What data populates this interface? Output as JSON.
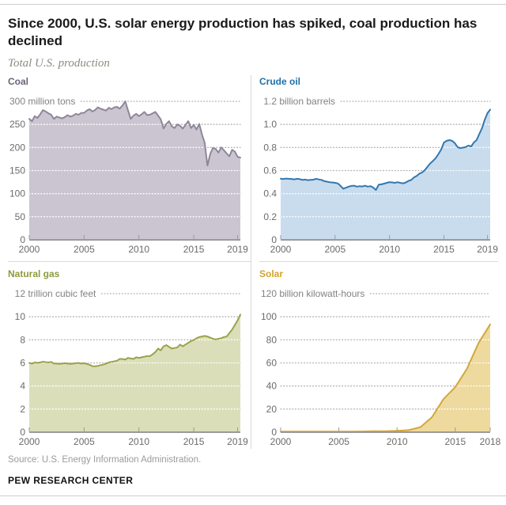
{
  "header": {
    "title": "Since 2000, U.S. solar energy production has spiked, coal production has declined",
    "subtitle": "Total U.S. production"
  },
  "footer": {
    "source": "Source: U.S. Energy Information Administration.",
    "brand": "PEW RESEARCH CENTER"
  },
  "chart_data": [
    {
      "id": "coal",
      "type": "area",
      "title": "Coal",
      "unit_label": "300 million tons",
      "unit_number": "300",
      "ymax": 300,
      "y_tick_labels": [
        "0",
        "50",
        "100",
        "150",
        "200",
        "250"
      ],
      "x_domain": [
        2000,
        2019.25
      ],
      "x_ticks": [
        "2000",
        "2005",
        "2010",
        "2015",
        "2019"
      ],
      "x_tick_years": [
        2000,
        2005,
        2010,
        2015,
        2019
      ],
      "x_start": 2000,
      "x_step": 0.25,
      "values": [
        262,
        257,
        268,
        264,
        272,
        281,
        278,
        274,
        271,
        262,
        267,
        265,
        263,
        266,
        270,
        267,
        269,
        273,
        271,
        275,
        275,
        280,
        283,
        278,
        281,
        287,
        284,
        282,
        280,
        286,
        283,
        287,
        288,
        284,
        291,
        300,
        281,
        262,
        269,
        273,
        268,
        272,
        277,
        270,
        271,
        274,
        277,
        269,
        261,
        241,
        251,
        257,
        246,
        242,
        250,
        247,
        241,
        249,
        257,
        242,
        249,
        239,
        251,
        228,
        210,
        161,
        186,
        199,
        197,
        189,
        200,
        194,
        187,
        181,
        195,
        191,
        180,
        178
      ],
      "colors": {
        "title": "#6b6376",
        "line": "#8f8698",
        "fill": "#cbc5d1"
      }
    },
    {
      "id": "crude-oil",
      "type": "area",
      "title": "Crude oil",
      "unit_label": "1.2 billion barrels",
      "unit_number": "1.2",
      "ymax": 1.2,
      "y_tick_labels": [
        "0",
        "0.2",
        "0.4",
        "0.6",
        "0.8",
        "1.0"
      ],
      "x_domain": [
        2000,
        2019.25
      ],
      "x_ticks": [
        "2000",
        "2005",
        "2010",
        "2015",
        "2019"
      ],
      "x_tick_years": [
        2000,
        2005,
        2010,
        2015,
        2019
      ],
      "x_start": 2000,
      "x_step": 0.25,
      "values": [
        0.53,
        0.527,
        0.531,
        0.529,
        0.527,
        0.524,
        0.529,
        0.526,
        0.519,
        0.522,
        0.517,
        0.52,
        0.521,
        0.529,
        0.523,
        0.519,
        0.509,
        0.504,
        0.499,
        0.497,
        0.494,
        0.489,
        0.468,
        0.443,
        0.452,
        0.461,
        0.467,
        0.469,
        0.461,
        0.465,
        0.462,
        0.469,
        0.461,
        0.465,
        0.453,
        0.432,
        0.477,
        0.481,
        0.487,
        0.494,
        0.5,
        0.497,
        0.494,
        0.499,
        0.494,
        0.489,
        0.497,
        0.511,
        0.519,
        0.541,
        0.554,
        0.574,
        0.584,
        0.604,
        0.634,
        0.664,
        0.684,
        0.709,
        0.744,
        0.784,
        0.843,
        0.858,
        0.864,
        0.858,
        0.838,
        0.804,
        0.794,
        0.799,
        0.804,
        0.817,
        0.809,
        0.844,
        0.864,
        0.916,
        0.968,
        1.04,
        1.098,
        1.128
      ],
      "colors": {
        "title": "#1f6fa8",
        "line": "#3478ad",
        "fill": "#c8dcee"
      }
    },
    {
      "id": "natural-gas",
      "type": "area",
      "title": "Natural gas",
      "unit_label": "12 trillion cubic feet",
      "unit_number": "12",
      "ymax": 12,
      "y_tick_labels": [
        "0",
        "2",
        "4",
        "6",
        "8",
        "10"
      ],
      "x_domain": [
        2000,
        2019.25
      ],
      "x_ticks": [
        "2000",
        "2005",
        "2010",
        "2015",
        "2019"
      ],
      "x_tick_years": [
        2000,
        2005,
        2010,
        2015,
        2019
      ],
      "x_start": 2000,
      "x_step": 0.25,
      "values": [
        6.0,
        5.94,
        6.04,
        6.01,
        6.04,
        6.1,
        6.07,
        6.04,
        6.09,
        5.95,
        5.94,
        5.91,
        5.94,
        5.97,
        5.94,
        5.91,
        5.94,
        5.97,
        6.0,
        5.94,
        5.97,
        5.91,
        5.84,
        5.72,
        5.71,
        5.74,
        5.81,
        5.85,
        5.94,
        6.04,
        6.09,
        6.14,
        6.19,
        6.34,
        6.34,
        6.29,
        6.44,
        6.39,
        6.34,
        6.49,
        6.44,
        6.49,
        6.54,
        6.59,
        6.59,
        6.74,
        6.94,
        7.24,
        7.09,
        7.44,
        7.54,
        7.39,
        7.24,
        7.29,
        7.34,
        7.59,
        7.44,
        7.59,
        7.74,
        7.89,
        7.99,
        8.14,
        8.24,
        8.29,
        8.34,
        8.29,
        8.19,
        8.09,
        8.04,
        8.09,
        8.14,
        8.24,
        8.29,
        8.59,
        8.89,
        9.29,
        9.69,
        10.19
      ],
      "colors": {
        "title": "#8e9a3c",
        "line": "#9aa34b",
        "fill": "#dbdfb9"
      }
    },
    {
      "id": "solar",
      "type": "area",
      "title": "Solar",
      "unit_label": "120 billion kilowatt-hours",
      "unit_number": "120",
      "ymax": 120,
      "y_tick_labels": [
        "0",
        "20",
        "40",
        "60",
        "80",
        "100"
      ],
      "x_domain": [
        2000,
        2018
      ],
      "x_ticks": [
        "2000",
        "2005",
        "2010",
        "2015",
        "2018"
      ],
      "x_tick_years": [
        2000,
        2005,
        2010,
        2015,
        2018
      ],
      "x_start": 2000,
      "x_step": 1,
      "values": [
        0.5,
        0.54,
        0.55,
        0.53,
        0.58,
        0.55,
        0.51,
        0.61,
        0.86,
        0.89,
        1.2,
        1.8,
        4.3,
        13.0,
        28.9,
        39.0,
        54.9,
        77.3,
        93.4
      ],
      "colors": {
        "title": "#d2a42f",
        "line": "#d3a73b",
        "fill": "#eeda9e"
      }
    }
  ]
}
